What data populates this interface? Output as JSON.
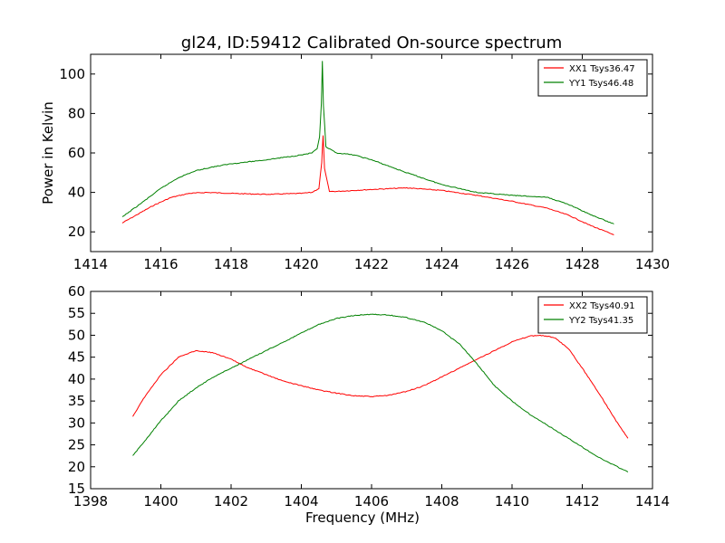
{
  "chart_data": [
    {
      "type": "line",
      "title": "gl24, ID:59412 Calibrated On-source spectrum",
      "xlabel": "",
      "ylabel": "Power in Kelvin",
      "xlim": [
        1414,
        1430
      ],
      "ylim": [
        10,
        110
      ],
      "xticks": [
        1414,
        1416,
        1418,
        1420,
        1422,
        1424,
        1426,
        1428,
        1430
      ],
      "yticks": [
        20,
        40,
        60,
        80,
        100
      ],
      "legend_position": "top-right",
      "series": [
        {
          "name": "XX1 Tsys36.47",
          "color": "#ff0000",
          "x": [
            1414.9,
            1415.3,
            1415.8,
            1416.3,
            1416.8,
            1417.3,
            1418.0,
            1419.0,
            1420.0,
            1420.3,
            1420.5,
            1420.58,
            1420.62,
            1420.66,
            1420.8,
            1421.0,
            1422.0,
            1423.0,
            1424.0,
            1425.0,
            1426.0,
            1427.0,
            1427.6,
            1428.2,
            1428.9
          ],
          "y": [
            24.5,
            28.5,
            33.5,
            37.5,
            39.5,
            40.0,
            39.5,
            39.0,
            39.5,
            40.0,
            42.0,
            55.0,
            69.0,
            52.0,
            40.5,
            40.5,
            41.5,
            42.3,
            41.0,
            38.5,
            35.5,
            32.0,
            28.5,
            23.5,
            18.5
          ]
        },
        {
          "name": "YY1 Tsys46.48",
          "color": "#008000",
          "x": [
            1414.9,
            1415.4,
            1416.0,
            1416.5,
            1417.0,
            1417.5,
            1418.0,
            1419.0,
            1420.0,
            1420.3,
            1420.45,
            1420.52,
            1420.57,
            1420.6,
            1420.63,
            1420.7,
            1421.0,
            1421.5,
            1422.0,
            1423.0,
            1424.0,
            1425.0,
            1426.0,
            1427.0,
            1427.6,
            1428.2,
            1428.9
          ],
          "y": [
            27.5,
            34.0,
            42.0,
            47.5,
            51.0,
            53.0,
            54.5,
            56.5,
            59.0,
            60.0,
            62.0,
            68.0,
            85.0,
            106.5,
            84.0,
            63.0,
            60.0,
            59.0,
            56.5,
            50.0,
            44.0,
            40.0,
            38.5,
            37.5,
            34.0,
            29.0,
            24.0
          ]
        }
      ]
    },
    {
      "type": "line",
      "title": "",
      "xlabel": "Frequency (MHz)",
      "ylabel": "",
      "xlim": [
        1398,
        1414
      ],
      "ylim": [
        15,
        60
      ],
      "xticks": [
        1398,
        1400,
        1402,
        1404,
        1406,
        1408,
        1410,
        1412,
        1414
      ],
      "yticks": [
        15,
        20,
        25,
        30,
        35,
        40,
        45,
        50,
        55,
        60
      ],
      "legend_position": "top-right",
      "series": [
        {
          "name": "XX2 Tsys40.91",
          "color": "#ff0000",
          "x": [
            1399.2,
            1399.5,
            1400.0,
            1400.5,
            1401.0,
            1401.5,
            1402.0,
            1402.5,
            1403.0,
            1403.5,
            1404.0,
            1404.5,
            1405.0,
            1405.5,
            1406.0,
            1406.5,
            1407.0,
            1407.5,
            1408.0,
            1408.5,
            1409.0,
            1409.5,
            1410.0,
            1410.5,
            1410.8,
            1411.2,
            1411.6,
            1412.0,
            1412.5,
            1413.0,
            1413.3
          ],
          "y": [
            31.5,
            35.5,
            41.0,
            45.0,
            46.5,
            46.0,
            44.5,
            42.5,
            41.0,
            39.5,
            38.5,
            37.5,
            36.8,
            36.2,
            36.0,
            36.3,
            37.2,
            38.5,
            40.5,
            42.5,
            44.5,
            46.5,
            48.5,
            49.8,
            50.0,
            49.5,
            47.0,
            42.5,
            36.5,
            30.0,
            26.5
          ]
        },
        {
          "name": "YY2 Tsys41.35",
          "color": "#008000",
          "x": [
            1399.2,
            1399.5,
            1400.0,
            1400.5,
            1401.0,
            1401.5,
            1402.0,
            1402.5,
            1403.0,
            1403.5,
            1404.0,
            1404.5,
            1405.0,
            1405.5,
            1406.0,
            1406.5,
            1407.0,
            1407.5,
            1408.0,
            1408.5,
            1409.0,
            1409.5,
            1410.0,
            1410.5,
            1411.0,
            1411.5,
            1412.0,
            1412.5,
            1413.0,
            1413.3
          ],
          "y": [
            22.5,
            25.5,
            30.5,
            35.0,
            38.0,
            40.5,
            42.5,
            44.5,
            46.5,
            48.5,
            50.5,
            52.5,
            53.8,
            54.5,
            54.8,
            54.6,
            54.0,
            53.0,
            51.0,
            48.0,
            43.5,
            38.5,
            35.0,
            32.0,
            29.5,
            27.0,
            24.5,
            22.0,
            20.0,
            18.8
          ]
        }
      ]
    }
  ]
}
